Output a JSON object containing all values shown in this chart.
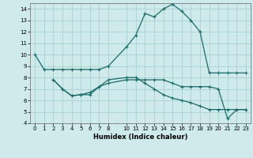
{
  "xlabel": "Humidex (Indice chaleur)",
  "background_color": "#ceeaea",
  "line_color": "#1a6b6b",
  "grid_color": "#aed4d4",
  "ylim": [
    4,
    14.5
  ],
  "xlim": [
    -0.5,
    23.5
  ],
  "yticks": [
    4,
    5,
    6,
    7,
    8,
    9,
    10,
    11,
    12,
    13,
    14
  ],
  "xticks": [
    0,
    1,
    2,
    3,
    4,
    5,
    6,
    7,
    8,
    10,
    11,
    12,
    13,
    14,
    15,
    16,
    17,
    18,
    19,
    20,
    21,
    22,
    23
  ],
  "line1_x": [
    0,
    1,
    2,
    3,
    4,
    5,
    6,
    7,
    8,
    10,
    11,
    12,
    13,
    14,
    15,
    16,
    17,
    18,
    19,
    20,
    21,
    22,
    23
  ],
  "line1_y": [
    10.0,
    8.7,
    8.7,
    8.7,
    8.7,
    8.7,
    8.7,
    8.7,
    9.0,
    10.7,
    11.7,
    13.6,
    13.3,
    14.0,
    14.4,
    13.8,
    13.0,
    12.0,
    8.4,
    8.4,
    8.4,
    8.4,
    8.4
  ],
  "line2_x": [
    2,
    3,
    4,
    5,
    6,
    7,
    8,
    10,
    11,
    12,
    13,
    14,
    15,
    16,
    17,
    18,
    19,
    20,
    21,
    22,
    23
  ],
  "line2_y": [
    7.8,
    7.0,
    6.4,
    6.5,
    6.5,
    7.2,
    7.5,
    7.8,
    7.8,
    7.8,
    7.8,
    7.8,
    7.5,
    7.2,
    7.2,
    7.2,
    7.2,
    7.0,
    4.4,
    5.2,
    5.2
  ],
  "line3_x": [
    2,
    3,
    4,
    5,
    6,
    7,
    8,
    10,
    11,
    12,
    13,
    14,
    15,
    16,
    17,
    18,
    19,
    20,
    21,
    22,
    23
  ],
  "line3_y": [
    7.8,
    7.0,
    6.4,
    6.5,
    6.7,
    7.2,
    7.8,
    8.0,
    8.0,
    7.5,
    7.0,
    6.5,
    6.2,
    6.0,
    5.8,
    5.5,
    5.2,
    5.2,
    5.2,
    5.2,
    5.2
  ]
}
